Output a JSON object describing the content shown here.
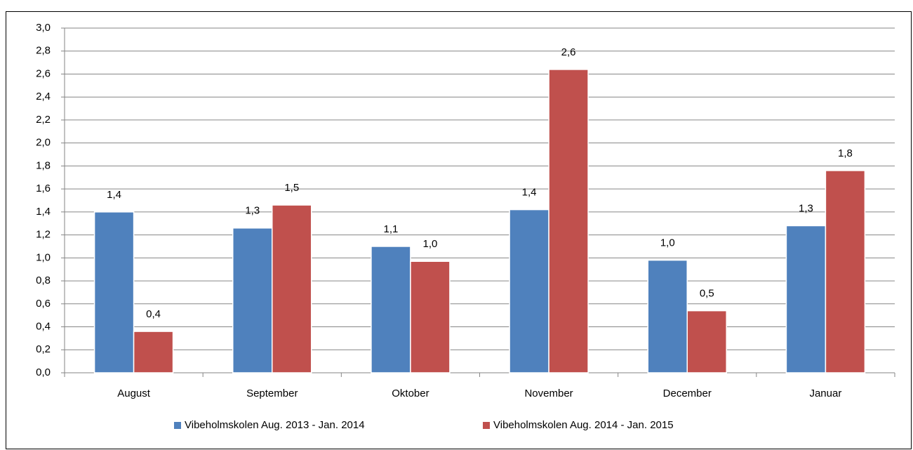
{
  "chart_data": {
    "type": "bar",
    "categories": [
      "August",
      "September",
      "Oktober",
      "November",
      "December",
      "Januar"
    ],
    "series": [
      {
        "name": "Vibeholmskolen Aug. 2013 - Jan. 2014",
        "color": "#4f81bd",
        "values": [
          1.4,
          1.26,
          1.1,
          1.42,
          0.98,
          1.28
        ],
        "value_labels": [
          "1,4",
          "1,3",
          "1,1",
          "1,4",
          "1,0",
          "1,3"
        ]
      },
      {
        "name": "Vibeholmskolen Aug. 2014 - Jan. 2015",
        "color": "#c0504d",
        "values": [
          0.36,
          1.46,
          0.97,
          2.64,
          0.54,
          1.76
        ],
        "value_labels": [
          "0,4",
          "1,5",
          "1,0",
          "2,6",
          "0,5",
          "1,8"
        ]
      }
    ],
    "ylim": [
      0,
      3
    ],
    "yticks": [
      {
        "value": 0,
        "label": "0,0"
      },
      {
        "value": 0.2,
        "label": "0,2"
      },
      {
        "value": 0.4,
        "label": "0,4"
      },
      {
        "value": 0.6,
        "label": "0,6"
      },
      {
        "value": 0.8,
        "label": "0,8"
      },
      {
        "value": 1,
        "label": "1,0"
      },
      {
        "value": 1.2,
        "label": "1,2"
      },
      {
        "value": 1.4,
        "label": "1,4"
      },
      {
        "value": 1.6,
        "label": "1,6"
      },
      {
        "value": 1.8,
        "label": "1,8"
      },
      {
        "value": 2,
        "label": "2,0"
      },
      {
        "value": 2.2,
        "label": "2,2"
      },
      {
        "value": 2.4,
        "label": "2,4"
      },
      {
        "value": 2.6,
        "label": "2,6"
      },
      {
        "value": 2.8,
        "label": "2,8"
      },
      {
        "value": 3,
        "label": "3,0"
      }
    ],
    "grid": true,
    "legend": "bottom"
  }
}
